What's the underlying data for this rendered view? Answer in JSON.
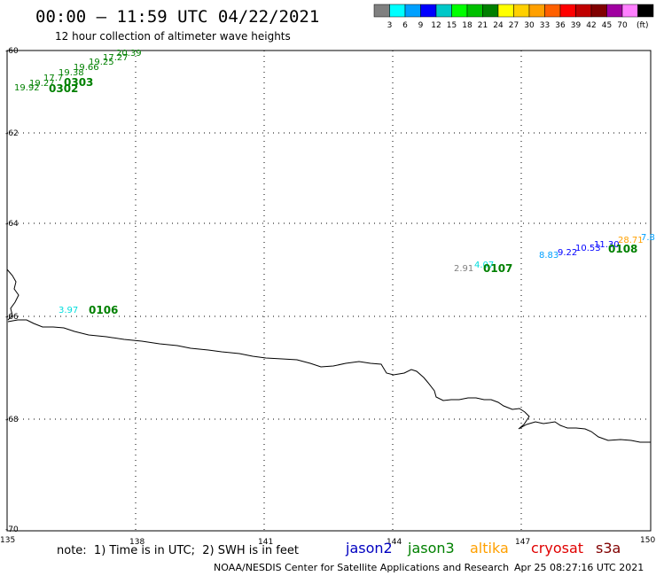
{
  "header": {
    "title": "00:00 – 11:59 UTC 04/22/2021",
    "subtitle": "12 hour collection of altimeter wave heights"
  },
  "legend": {
    "colors": [
      "#808080",
      "#00ffff",
      "#00a0ff",
      "#0000ff",
      "#00c8c8",
      "#00ff00",
      "#00c000",
      "#008000",
      "#ffff00",
      "#ffd000",
      "#ffa000",
      "#ff6000",
      "#ff0000",
      "#c00000",
      "#800000",
      "#a000a0",
      "#ff80ff",
      "#000000"
    ],
    "labels": [
      "3",
      "6",
      "9",
      "12",
      "15",
      "18",
      "21",
      "24",
      "27",
      "30",
      "33",
      "36",
      "39",
      "42",
      "45",
      "70"
    ],
    "unit": "(ft)"
  },
  "axes": {
    "lat_labels": [
      "-60",
      "-62",
      "-64",
      "-66",
      "-68",
      "-70"
    ],
    "lon_labels": [
      "135",
      "138",
      "141",
      "144",
      "147",
      "150"
    ]
  },
  "observations": [
    {
      "text": "19.92",
      "color": "#008000"
    },
    {
      "text": "19.27",
      "color": "#008000"
    },
    {
      "text": "17.7",
      "color": "#008000"
    },
    {
      "text": "19.38",
      "color": "#008000"
    },
    {
      "text": "19.66",
      "color": "#008000"
    },
    {
      "text": "19.25",
      "color": "#008000"
    },
    {
      "text": "17.27",
      "color": "#008000"
    },
    {
      "text": "20.39",
      "color": "#008000"
    },
    {
      "text": "3.97",
      "color": "#00dddd"
    },
    {
      "text": "2.91",
      "color": "#808080"
    },
    {
      "text": "4.07",
      "color": "#00dddd"
    },
    {
      "text": "8.83",
      "color": "#00a0ff"
    },
    {
      "text": "9.22",
      "color": "#0000ff"
    },
    {
      "text": "10.53",
      "color": "#0000ff"
    },
    {
      "text": "11.30",
      "color": "#0000ff"
    },
    {
      "text": "28.71",
      "color": "#ffa000"
    },
    {
      "text": "7.8",
      "color": "#00a0ff"
    }
  ],
  "time_tags": [
    {
      "text": "0302",
      "color": "#008000"
    },
    {
      "text": "0303",
      "color": "#008000"
    },
    {
      "text": "0106",
      "color": "#008000"
    },
    {
      "text": "0107",
      "color": "#008000"
    },
    {
      "text": "0108",
      "color": "#008000"
    }
  ],
  "note": "note:  1) Time is in UTC;  2) SWH is in feet",
  "satellites": [
    {
      "name": "jason2",
      "color": "#0000c0"
    },
    {
      "name": "jason3",
      "color": "#008000"
    },
    {
      "name": "altika",
      "color": "#ffa000"
    },
    {
      "name": "cryosat",
      "color": "#e00000"
    },
    {
      "name": "s3a",
      "color": "#800000"
    }
  ],
  "footer": {
    "credit": "NOAA/NESDIS Center for Satellite Applications and Research",
    "timestamp": "Apr 25 08:27:16 UTC 2021"
  }
}
